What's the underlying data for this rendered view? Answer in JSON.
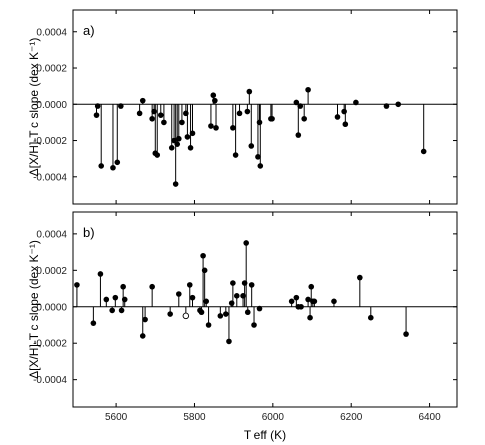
{
  "chart_data": [
    {
      "type": "scatter",
      "style": "stem",
      "panel_label": "a)",
      "xlim": [
        5490,
        6470
      ],
      "ylim": [
        -0.00055,
        0.00052
      ],
      "xticks": [
        5600,
        5800,
        6000,
        6200,
        6400
      ],
      "yticks": [
        -0.0004,
        -0.0002,
        0.0,
        0.0002,
        0.0004
      ],
      "ytick_labels": [
        "-0.0004",
        "-0.0002",
        "0.0000",
        "0.0002",
        "0.0004"
      ],
      "ylabel": "Δ[X/H]-T c slope (dex K⁻¹)",
      "points": [
        {
          "x": 5550,
          "y": -6e-05
        },
        {
          "x": 5553,
          "y": -1e-05
        },
        {
          "x": 5562,
          "y": -0.00034
        },
        {
          "x": 5592,
          "y": -0.00035
        },
        {
          "x": 5603,
          "y": -0.00032
        },
        {
          "x": 5612,
          "y": -1e-05
        },
        {
          "x": 5660,
          "y": -5e-05
        },
        {
          "x": 5668,
          "y": 2e-05
        },
        {
          "x": 5692,
          "y": -8e-05
        },
        {
          "x": 5697,
          "y": -4e-05
        },
        {
          "x": 5700,
          "y": -0.00027
        },
        {
          "x": 5705,
          "y": -0.00028
        },
        {
          "x": 5714,
          "y": -6e-05
        },
        {
          "x": 5722,
          "y": -0.0001
        },
        {
          "x": 5742,
          "y": -0.00024
        },
        {
          "x": 5748,
          "y": -0.0002
        },
        {
          "x": 5752,
          "y": -0.00044
        },
        {
          "x": 5756,
          "y": -0.00022
        },
        {
          "x": 5760,
          "y": -0.00019
        },
        {
          "x": 5768,
          "y": -0.0001
        },
        {
          "x": 5778,
          "y": -5e-05
        },
        {
          "x": 5782,
          "y": -0.00018
        },
        {
          "x": 5790,
          "y": -0.00024
        },
        {
          "x": 5795,
          "y": -0.00016
        },
        {
          "x": 5842,
          "y": -0.00012
        },
        {
          "x": 5848,
          "y": 5e-05
        },
        {
          "x": 5852,
          "y": 2e-05
        },
        {
          "x": 5855,
          "y": -0.00013
        },
        {
          "x": 5898,
          "y": -0.00013
        },
        {
          "x": 5905,
          "y": -0.00028
        },
        {
          "x": 5915,
          "y": -5e-05
        },
        {
          "x": 5935,
          "y": -4e-05
        },
        {
          "x": 5940,
          "y": 7e-05
        },
        {
          "x": 5945,
          "y": -0.00023
        },
        {
          "x": 5962,
          "y": -0.00029
        },
        {
          "x": 5966,
          "y": -0.0001
        },
        {
          "x": 5968,
          "y": -0.00034
        },
        {
          "x": 5995,
          "y": -8e-05
        },
        {
          "x": 5998,
          "y": -8e-05
        },
        {
          "x": 6060,
          "y": 1e-05
        },
        {
          "x": 6065,
          "y": -0.00017
        },
        {
          "x": 6070,
          "y": -1e-05
        },
        {
          "x": 6080,
          "y": -8e-05
        },
        {
          "x": 6090,
          "y": 8e-05
        },
        {
          "x": 6165,
          "y": -7e-05
        },
        {
          "x": 6182,
          "y": -4e-05
        },
        {
          "x": 6185,
          "y": -0.00011
        },
        {
          "x": 6212,
          "y": 1e-05
        },
        {
          "x": 6290,
          "y": -1e-05
        },
        {
          "x": 6320,
          "y": 0.0
        },
        {
          "x": 6385,
          "y": -0.00026
        }
      ]
    },
    {
      "type": "scatter",
      "style": "stem",
      "panel_label": "b)",
      "xlim": [
        5490,
        6470
      ],
      "ylim": [
        -0.00055,
        0.00052
      ],
      "xticks": [
        5600,
        5800,
        6000,
        6200,
        6400
      ],
      "xtick_labels": [
        "5600",
        "5800",
        "6000",
        "6200",
        "6400"
      ],
      "yticks": [
        -0.0004,
        -0.0002,
        0.0,
        0.0002,
        0.0004
      ],
      "ytick_labels": [
        "-0.0004",
        "-0.0002",
        "0.0000",
        "0.0002",
        "0.0004"
      ],
      "ylabel": "Δ[X/H]-T c slope (dex K⁻¹)",
      "xlabel": "T eff (K)",
      "points": [
        {
          "x": 5500,
          "y": 0.00012
        },
        {
          "x": 5542,
          "y": -9e-05
        },
        {
          "x": 5560,
          "y": 0.00018
        },
        {
          "x": 5575,
          "y": 4e-05
        },
        {
          "x": 5590,
          "y": -2e-05
        },
        {
          "x": 5598,
          "y": 5e-05
        },
        {
          "x": 5614,
          "y": -2e-05
        },
        {
          "x": 5618,
          "y": 0.00011
        },
        {
          "x": 5622,
          "y": 4e-05
        },
        {
          "x": 5668,
          "y": -0.00016
        },
        {
          "x": 5674,
          "y": -7e-05
        },
        {
          "x": 5692,
          "y": 0.00011
        },
        {
          "x": 5738,
          "y": -4e-05
        },
        {
          "x": 5760,
          "y": 7e-05
        },
        {
          "x": 5778,
          "y": -5e-05,
          "open": true
        },
        {
          "x": 5788,
          "y": 0.00012
        },
        {
          "x": 5795,
          "y": 5e-05
        },
        {
          "x": 5814,
          "y": -2e-05
        },
        {
          "x": 5818,
          "y": -3e-05
        },
        {
          "x": 5822,
          "y": 0.00028
        },
        {
          "x": 5826,
          "y": 0.0002
        },
        {
          "x": 5830,
          "y": 3e-05
        },
        {
          "x": 5836,
          "y": -0.0001
        },
        {
          "x": 5866,
          "y": -5e-05
        },
        {
          "x": 5880,
          "y": -4e-05
        },
        {
          "x": 5888,
          "y": -0.00019
        },
        {
          "x": 5895,
          "y": 2e-05
        },
        {
          "x": 5898,
          "y": 0.00013
        },
        {
          "x": 5908,
          "y": 6e-05
        },
        {
          "x": 5924,
          "y": 6e-05
        },
        {
          "x": 5928,
          "y": 0.00013
        },
        {
          "x": 5932,
          "y": 0.00035
        },
        {
          "x": 5936,
          "y": -3e-05
        },
        {
          "x": 5946,
          "y": 0.00012
        },
        {
          "x": 5952,
          "y": -0.0001
        },
        {
          "x": 5966,
          "y": -1e-05
        },
        {
          "x": 6048,
          "y": 3e-05
        },
        {
          "x": 6060,
          "y": 5e-05
        },
        {
          "x": 6065,
          "y": 0.0
        },
        {
          "x": 6072,
          "y": 0.0
        },
        {
          "x": 6090,
          "y": 4e-05
        },
        {
          "x": 6095,
          "y": -6e-05
        },
        {
          "x": 6098,
          "y": 0.00011
        },
        {
          "x": 6102,
          "y": 3e-05
        },
        {
          "x": 6106,
          "y": 3e-05
        },
        {
          "x": 6156,
          "y": 3e-05
        },
        {
          "x": 6222,
          "y": 0.00016
        },
        {
          "x": 6250,
          "y": -6e-05
        },
        {
          "x": 6340,
          "y": -0.00015
        }
      ]
    }
  ]
}
